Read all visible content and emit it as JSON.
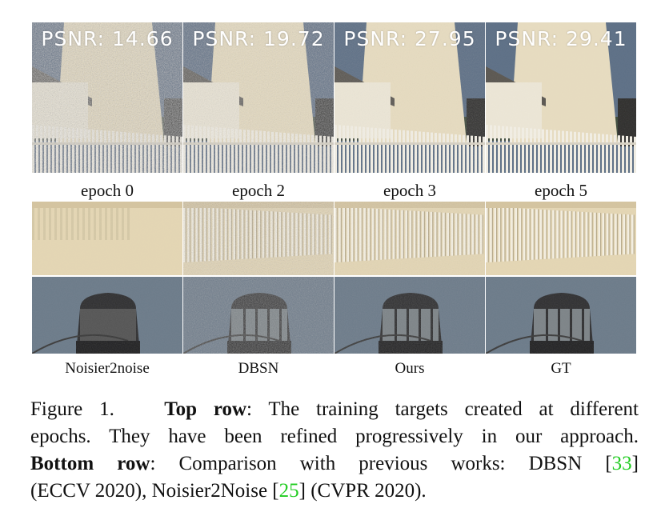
{
  "top_row": [
    {
      "psnr": "PSNR: 14.66",
      "label": "epoch 0",
      "noise": 0.9
    },
    {
      "psnr": "PSNR: 19.72",
      "label": "epoch 2",
      "noise": 0.55
    },
    {
      "psnr": "PSNR: 27.95",
      "label": "epoch 3",
      "noise": 0.15
    },
    {
      "psnr": "PSNR: 29.41",
      "label": "epoch 5",
      "noise": 0.05
    }
  ],
  "bottom_labels": [
    "Noisier2noise",
    "DBSN",
    "Ours",
    "GT"
  ],
  "caption": {
    "fig": "Figure 1.",
    "top_bold": "Top row",
    "line1_rest": ":  The training targets created at different",
    "line2": "epochs.  They have been refined progressively in our approach.",
    "bottom_bold": "Bottom row",
    "line3_rest": ":  Comparison with previous works:  DBSN [",
    "ref1": "33",
    "line3_end": "]",
    "line4_a": "(ECCV 2020), Noisier2Noise [",
    "ref2": "25",
    "line4_b": "] (CVPR 2020)."
  },
  "colors": {
    "sky": "#5c6f86",
    "tower": "#e7dcc0",
    "roof": "#5a5650",
    "fence": "#f2eee4",
    "ref_green": "#22cc22"
  }
}
